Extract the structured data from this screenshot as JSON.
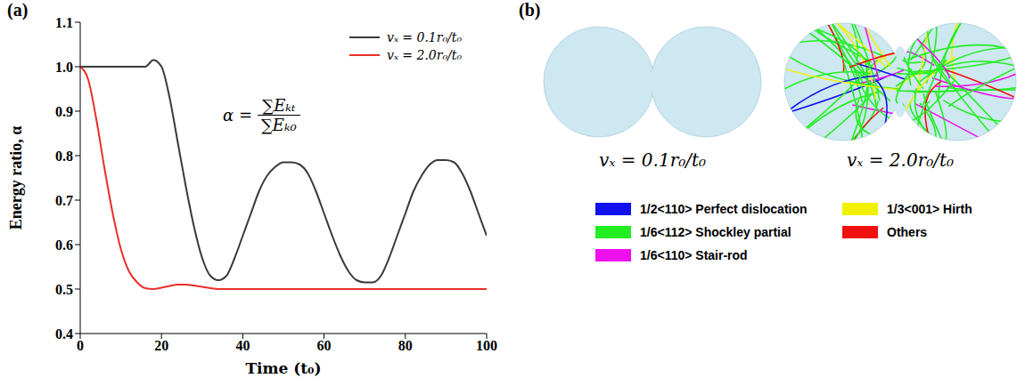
{
  "chart_data": {
    "type": "line",
    "panel": "(a)",
    "x_label": "Time (t₀)",
    "y_label": "Energy ratio, α",
    "annotation": {
      "lhs": "α =",
      "numerator": "∑Eₖₜ",
      "denominator": "∑Eₖ₀"
    },
    "x": [
      0,
      2,
      4,
      6,
      8,
      10,
      12,
      14,
      16,
      18,
      20,
      22,
      24,
      26,
      28,
      30,
      32,
      34,
      36,
      38,
      40,
      42,
      44,
      46,
      48,
      50,
      52,
      54,
      56,
      58,
      60,
      62,
      64,
      66,
      68,
      70,
      72,
      74,
      76,
      78,
      80,
      82,
      84,
      86,
      88,
      90,
      92,
      94,
      96,
      98,
      100
    ],
    "series": [
      {
        "name": "vₓ = 0.1r₀/t₀",
        "color": "#3a3a3a",
        "values": [
          1.0,
          1.0,
          1.0,
          1.0,
          1.0,
          1.0,
          1.0,
          1.0,
          1.0,
          1.015,
          1.0,
          0.93,
          0.83,
          0.73,
          0.64,
          0.57,
          0.53,
          0.52,
          0.53,
          0.57,
          0.62,
          0.67,
          0.72,
          0.755,
          0.775,
          0.785,
          0.785,
          0.78,
          0.76,
          0.72,
          0.67,
          0.62,
          0.575,
          0.54,
          0.52,
          0.515,
          0.515,
          0.53,
          0.57,
          0.62,
          0.67,
          0.72,
          0.755,
          0.78,
          0.79,
          0.79,
          0.785,
          0.76,
          0.72,
          0.67,
          0.62
        ]
      },
      {
        "name": "vₓ = 2.0r₀/t₀",
        "color": "#e8302a",
        "values": [
          1.0,
          0.97,
          0.88,
          0.77,
          0.67,
          0.59,
          0.54,
          0.515,
          0.502,
          0.5,
          0.503,
          0.507,
          0.51,
          0.51,
          0.508,
          0.505,
          0.502,
          0.5,
          0.5,
          0.5,
          0.5,
          0.5,
          0.5,
          0.5,
          0.5,
          0.5,
          0.5,
          0.5,
          0.5,
          0.5,
          0.5,
          0.5,
          0.5,
          0.5,
          0.5,
          0.5,
          0.5,
          0.5,
          0.5,
          0.5,
          0.5,
          0.5,
          0.5,
          0.5,
          0.5,
          0.5,
          0.5,
          0.5,
          0.5,
          0.5,
          0.5
        ]
      }
    ],
    "xlim": [
      0,
      100
    ],
    "xticks": [
      0,
      20,
      40,
      60,
      80,
      100
    ],
    "ylim": [
      0.4,
      1.1
    ],
    "yticks": [
      0.4,
      0.5,
      0.6,
      0.7,
      0.8,
      0.9,
      {
        "value": 1,
        "label": "1.0"
      },
      1.1
    ],
    "grid": false,
    "legend": "top-right"
  },
  "panel_b": {
    "panel": "(b)",
    "images": [
      {
        "label": "vₓ = 0.1r₀/t₀",
        "dislocations": false
      },
      {
        "label": "vₓ = 2.0r₀/t₀",
        "dislocations": true
      }
    ],
    "legend": [
      {
        "name": "1/2<110> Perfect dislocation",
        "color": "#1010f0"
      },
      {
        "name": "1/6<112> Shockley partial",
        "color": "#22ee22"
      },
      {
        "name": "1/6<110> Stair-rod",
        "color": "#ee11ee"
      },
      {
        "name": "1/3<001> Hirth",
        "color": "#f0f000"
      },
      {
        "name": "Others",
        "color": "#f01010"
      }
    ]
  }
}
